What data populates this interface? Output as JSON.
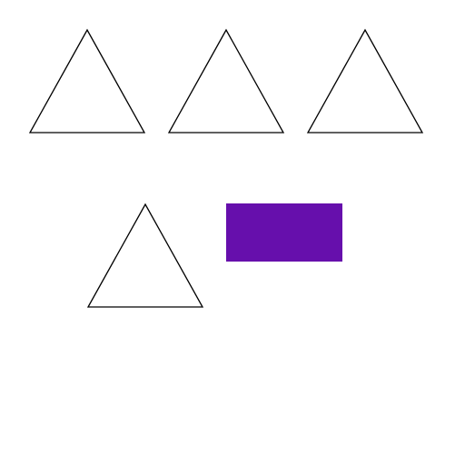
{
  "background": "#ffffff",
  "shapes": [
    {
      "kind": "triangle",
      "fill": "#ffffff",
      "stroke": "#000000"
    },
    {
      "kind": "triangle",
      "fill": "#ffffff",
      "stroke": "#000000"
    },
    {
      "kind": "triangle",
      "fill": "#ffffff",
      "stroke": "#000000"
    },
    {
      "kind": "triangle",
      "fill": "#ffffff",
      "stroke": "#000000"
    },
    {
      "kind": "rectangle",
      "fill": "#660fac",
      "stroke": "none"
    }
  ]
}
